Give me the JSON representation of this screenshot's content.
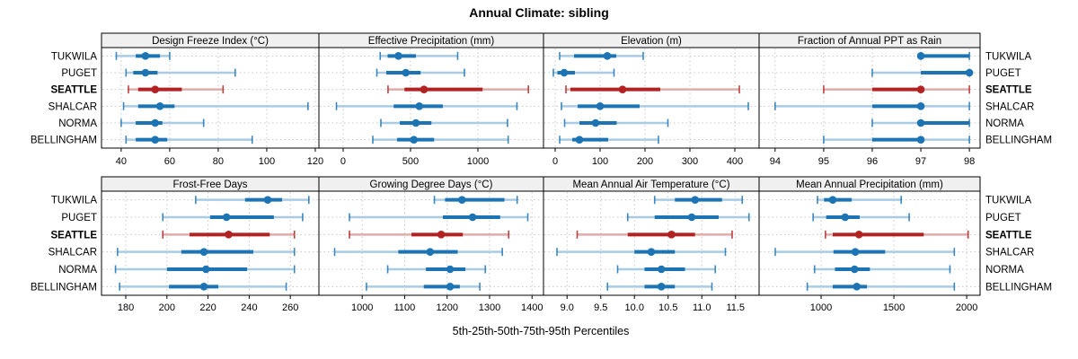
{
  "title": "Annual Climate: sibling",
  "caption": "5th-25th-50th-75th-95th Percentiles",
  "percentile_labels": [
    "5th",
    "25th",
    "50th",
    "75th",
    "95th"
  ],
  "stations": [
    {
      "name": "TUKWILA",
      "highlight": false
    },
    {
      "name": "PUGET",
      "highlight": false
    },
    {
      "name": "SEATTLE",
      "highlight": true
    },
    {
      "name": "SHALCAR",
      "highlight": false
    },
    {
      "name": "NORMA",
      "highlight": false
    },
    {
      "name": "BELLINGHAM",
      "highlight": false
    }
  ],
  "colors": {
    "blue": "#1c74b4",
    "blue_light": "#a9cbe4",
    "red": "#b22222",
    "red_light": "#e2abaa",
    "header_bg": "#f0f0f0",
    "border": "#000000",
    "grid": "#c8c8c8",
    "text": "#000000"
  },
  "chart_data": [
    {
      "type": "percentile-interval",
      "title": "Design Freeze Index (°C)",
      "grid_row": 0,
      "grid_col": 0,
      "xlim": [
        31.9,
        121.5
      ],
      "tick_values": [
        40,
        60,
        80,
        100,
        120
      ],
      "tick_labels": [
        "40",
        "60",
        "80",
        "100",
        "120"
      ],
      "legend_note": "values are 5th,25th,50th,75th,95th percentiles",
      "series": [
        {
          "station": "TUKWILA",
          "p": [
            38,
            46,
            50,
            56,
            60
          ]
        },
        {
          "station": "PUGET",
          "p": [
            42,
            45,
            50,
            55,
            87
          ]
        },
        {
          "station": "SEATTLE",
          "p": [
            43,
            47,
            54,
            65,
            82
          ]
        },
        {
          "station": "SHALCAR",
          "p": [
            41,
            47,
            56,
            62,
            117
          ]
        },
        {
          "station": "NORMA",
          "p": [
            40,
            46,
            54,
            57,
            74
          ]
        },
        {
          "station": "BELLINGHAM",
          "p": [
            42,
            46,
            54,
            59,
            94
          ]
        }
      ]
    },
    {
      "type": "percentile-interval",
      "title": "Effective Precipitation (mm)",
      "grid_row": 0,
      "grid_col": 1,
      "xlim": [
        -180,
        1487
      ],
      "tick_values": [
        0,
        500,
        1000
      ],
      "tick_labels": [
        "0",
        "500",
        "1000"
      ],
      "series": [
        {
          "station": "TUKWILA",
          "p": [
            275,
            330,
            410,
            540,
            850
          ]
        },
        {
          "station": "PUGET",
          "p": [
            250,
            320,
            465,
            575,
            900
          ]
        },
        {
          "station": "SEATTLE",
          "p": [
            333,
            455,
            600,
            1035,
            1375
          ]
        },
        {
          "station": "SHALCAR",
          "p": [
            -50,
            375,
            565,
            740,
            1290
          ]
        },
        {
          "station": "NORMA",
          "p": [
            280,
            420,
            540,
            655,
            1220
          ]
        },
        {
          "station": "BELLINGHAM",
          "p": [
            220,
            400,
            525,
            675,
            1225
          ]
        }
      ]
    },
    {
      "type": "percentile-interval",
      "title": "Elevation (m)",
      "grid_row": 0,
      "grid_col": 2,
      "xlim": [
        -26,
        454
      ],
      "tick_values": [
        0,
        100,
        200,
        300,
        400
      ],
      "tick_labels": [
        "0",
        "100",
        "200",
        "300",
        "400"
      ],
      "series": [
        {
          "station": "TUKWILA",
          "p": [
            10,
            42,
            116,
            136,
            196
          ]
        },
        {
          "station": "PUGET",
          "p": [
            -4,
            5,
            20,
            44,
            131
          ]
        },
        {
          "station": "SEATTLE",
          "p": [
            24,
            34,
            150,
            234,
            410
          ]
        },
        {
          "station": "SHALCAR",
          "p": [
            14,
            50,
            100,
            188,
            430
          ]
        },
        {
          "station": "NORMA",
          "p": [
            21,
            54,
            90,
            137,
            251
          ]
        },
        {
          "station": "BELLINGHAM",
          "p": [
            10,
            38,
            54,
            118,
            230
          ]
        }
      ]
    },
    {
      "type": "percentile-interval",
      "title": "Fraction of Annual PPT as Rain",
      "grid_row": 0,
      "grid_col": 3,
      "xlim": [
        93.67,
        98.22
      ],
      "tick_values": [
        94,
        95,
        96,
        97,
        98
      ],
      "tick_labels": [
        "94",
        "95",
        "96",
        "97",
        "98"
      ],
      "series": [
        {
          "station": "TUKWILA",
          "p": [
            97,
            97,
            97,
            98,
            98
          ]
        },
        {
          "station": "PUGET",
          "p": [
            96,
            97,
            98,
            98,
            98
          ]
        },
        {
          "station": "SEATTLE",
          "p": [
            95,
            96,
            97,
            97,
            98
          ]
        },
        {
          "station": "SHALCAR",
          "p": [
            94,
            96,
            97,
            97,
            98
          ]
        },
        {
          "station": "NORMA",
          "p": [
            96,
            97,
            97,
            98,
            98
          ]
        },
        {
          "station": "BELLINGHAM",
          "p": [
            95,
            96,
            97,
            97,
            98
          ]
        }
      ]
    },
    {
      "type": "percentile-interval",
      "title": "Frost-Free Days",
      "grid_row": 1,
      "grid_col": 0,
      "xlim": [
        168.2,
        273.9
      ],
      "tick_values": [
        180,
        200,
        220,
        240,
        260
      ],
      "tick_labels": [
        "180",
        "200",
        "220",
        "240",
        "260"
      ],
      "series": [
        {
          "station": "TUKWILA",
          "p": [
            214,
            238,
            249,
            256,
            269
          ]
        },
        {
          "station": "PUGET",
          "p": [
            198,
            221,
            229,
            252,
            266
          ]
        },
        {
          "station": "SEATTLE",
          "p": [
            198,
            211,
            230,
            250,
            262
          ]
        },
        {
          "station": "SHALCAR",
          "p": [
            176,
            207,
            218,
            242,
            262
          ]
        },
        {
          "station": "NORMA",
          "p": [
            175,
            200,
            219,
            239,
            262
          ]
        },
        {
          "station": "BELLINGHAM",
          "p": [
            177,
            201,
            218,
            225,
            258
          ]
        }
      ]
    },
    {
      "type": "percentile-interval",
      "title": "Growing Degree Days (°C)",
      "grid_row": 1,
      "grid_col": 1,
      "xlim": [
        898,
        1427
      ],
      "tick_values": [
        1000,
        1100,
        1200,
        1300,
        1400
      ],
      "tick_labels": [
        "1000",
        "1100",
        "1200",
        "1300",
        "1400"
      ],
      "series": [
        {
          "station": "TUKWILA",
          "p": [
            1170,
            1195,
            1235,
            1335,
            1365
          ]
        },
        {
          "station": "PUGET",
          "p": [
            970,
            1190,
            1260,
            1325,
            1390
          ]
        },
        {
          "station": "SEATTLE",
          "p": [
            970,
            1116,
            1186,
            1237,
            1345
          ]
        },
        {
          "station": "SHALCAR",
          "p": [
            935,
            1085,
            1160,
            1225,
            1330
          ]
        },
        {
          "station": "NORMA",
          "p": [
            1060,
            1150,
            1207,
            1243,
            1290
          ]
        },
        {
          "station": "BELLINGHAM",
          "p": [
            1010,
            1145,
            1207,
            1230,
            1277
          ]
        }
      ]
    },
    {
      "type": "percentile-interval",
      "title": "Mean Annual Air Temperature (°C)",
      "grid_row": 1,
      "grid_col": 2,
      "xlim": [
        8.65,
        11.85
      ],
      "tick_values": [
        9.0,
        9.5,
        10.0,
        10.5,
        11.0,
        11.5
      ],
      "tick_labels": [
        "9.0",
        "9.5",
        "10.0",
        "10.5",
        "11.0",
        "11.5"
      ],
      "series": [
        {
          "station": "TUKWILA",
          "p": [
            10.3,
            10.6,
            10.9,
            11.3,
            11.6
          ]
        },
        {
          "station": "PUGET",
          "p": [
            9.9,
            10.3,
            10.85,
            11.25,
            11.7
          ]
        },
        {
          "station": "SEATTLE",
          "p": [
            9.15,
            9.9,
            10.55,
            10.9,
            11.45
          ]
        },
        {
          "station": "SHALCAR",
          "p": [
            8.85,
            10.0,
            10.25,
            10.6,
            11.35
          ]
        },
        {
          "station": "NORMA",
          "p": [
            9.75,
            10.15,
            10.4,
            10.75,
            11.2
          ]
        },
        {
          "station": "BELLINGHAM",
          "p": [
            9.6,
            10.15,
            10.4,
            10.6,
            11.15
          ]
        }
      ]
    },
    {
      "type": "percentile-interval",
      "title": "Mean Annual Precipitation (mm)",
      "grid_row": 1,
      "grid_col": 3,
      "xlim": [
        574,
        2092
      ],
      "tick_values": [
        1000,
        1500,
        2000
      ],
      "tick_labels": [
        "1000",
        "1500",
        "2000"
      ],
      "series": [
        {
          "station": "TUKWILA",
          "p": [
            975,
            1020,
            1080,
            1210,
            1550
          ]
        },
        {
          "station": "PUGET",
          "p": [
            945,
            1035,
            1165,
            1265,
            1605
          ]
        },
        {
          "station": "SEATTLE",
          "p": [
            1030,
            1080,
            1260,
            1705,
            2010
          ]
        },
        {
          "station": "SHALCAR",
          "p": [
            685,
            1085,
            1235,
            1440,
            1915
          ]
        },
        {
          "station": "NORMA",
          "p": [
            955,
            1095,
            1230,
            1335,
            1885
          ]
        },
        {
          "station": "BELLINGHAM",
          "p": [
            905,
            1080,
            1245,
            1315,
            1915
          ]
        }
      ]
    }
  ]
}
